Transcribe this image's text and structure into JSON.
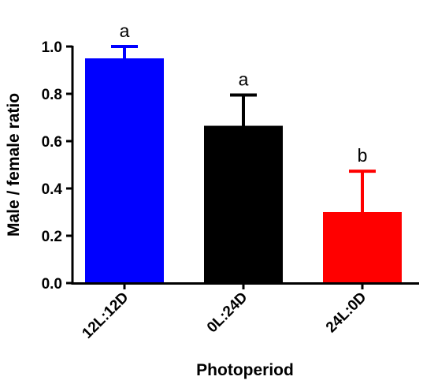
{
  "chart_data": {
    "type": "bar",
    "categories": [
      "12L:12D",
      "0L:24D",
      "24L:0D"
    ],
    "values": [
      0.95,
      0.665,
      0.3
    ],
    "error_upper": [
      1.0,
      0.795,
      0.473
    ],
    "significance_letters": [
      "a",
      "a",
      "b"
    ],
    "colors": [
      "#0000ff",
      "#000000",
      "#ff0000"
    ],
    "xlabel": "Photoperiod",
    "ylabel": "Male / female ratio",
    "ylim": [
      0,
      1.0
    ],
    "yticks": [
      "0.0",
      "0.2",
      "0.4",
      "0.6",
      "0.8",
      "1.0"
    ],
    "ytick_values": [
      0,
      0.2,
      0.4,
      0.6,
      0.8,
      1.0
    ],
    "grid": false,
    "legend": "none"
  }
}
